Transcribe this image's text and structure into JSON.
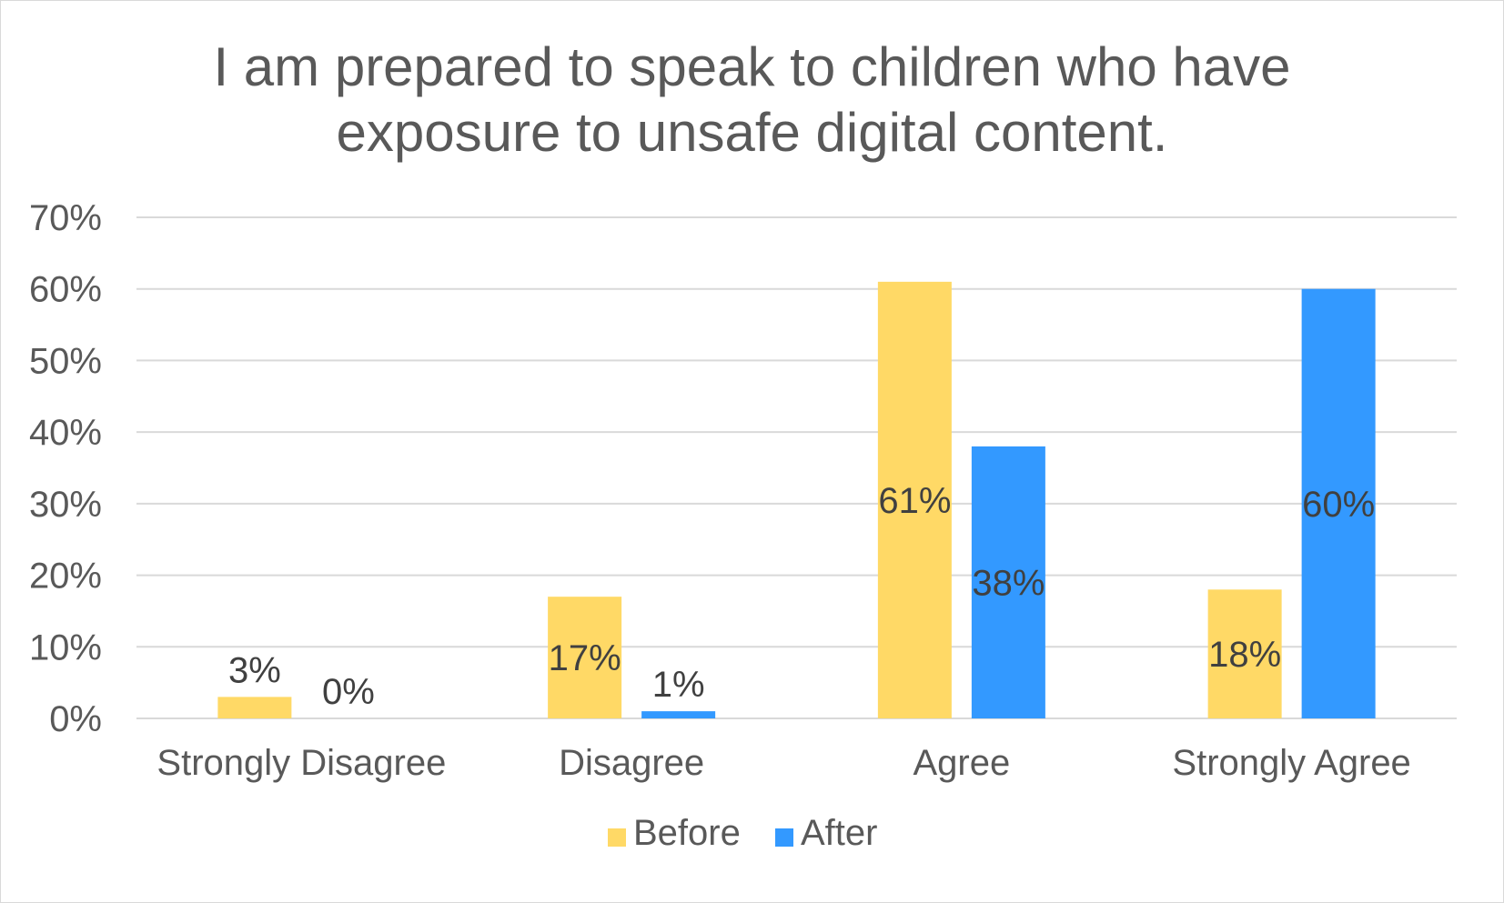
{
  "chart_data": {
    "type": "bar",
    "title_lines": [
      "I am prepared to speak to children who have",
      "exposure to unsafe digital content."
    ],
    "categories": [
      "Strongly Disagree",
      "Disagree",
      "Agree",
      "Strongly Agree"
    ],
    "series": [
      {
        "name": "Before",
        "color": "#FFD966",
        "values": [
          0.03,
          0.17,
          0.61,
          0.18
        ],
        "labels": [
          "3%",
          "17%",
          "61%",
          "18%"
        ]
      },
      {
        "name": "After",
        "color": "#3399FF",
        "values": [
          0.0,
          0.01,
          0.38,
          0.6
        ],
        "labels": [
          "0%",
          "1%",
          "38%",
          "60%"
        ]
      }
    ],
    "yticks": [
      "0%",
      "10%",
      "20%",
      "30%",
      "40%",
      "50%",
      "60%",
      "70%"
    ],
    "ylim": [
      0,
      0.7
    ],
    "grid": true,
    "legend": "bottom",
    "gridline_color": "#d9d9d9",
    "text_color": "#595959"
  }
}
